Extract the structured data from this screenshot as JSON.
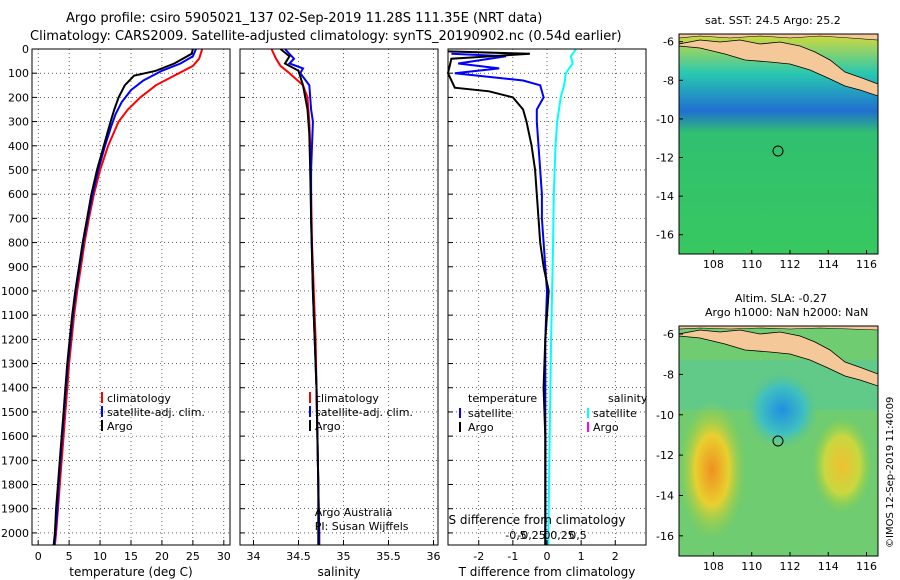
{
  "header": {
    "line1": "Argo profile: csiro 5905021_137 02-Sep-2019 11.28S 111.35E (NRT data)",
    "line2": "Climatology: CARS2009. Satellite-adjusted climatology: synTS_20190902.nc (0.54d earlier)"
  },
  "colors": {
    "climatology": "#ff0000",
    "satellite": "#0000ff",
    "argo": "#000000",
    "satellite_salinity": "#00ffff",
    "argo_salinity": "#ff00ff",
    "land": "#f5c89a"
  },
  "credit": {
    "argo": "Argo Australia",
    "pi": "PI: Susan Wijffels",
    "imos": "©IMOS 12-Sep-2019 11:40:09"
  },
  "chart_data": [
    {
      "type": "line",
      "xlabel": "temperature (deg C)",
      "xlim": [
        -1,
        31
      ],
      "ylim": [
        2050,
        0
      ],
      "y_reversed": true,
      "xticks": [
        0,
        5,
        10,
        15,
        20,
        25,
        30
      ],
      "yticks": [
        0,
        100,
        200,
        300,
        400,
        500,
        600,
        700,
        800,
        900,
        1000,
        1100,
        1200,
        1300,
        1400,
        1500,
        1600,
        1700,
        1800,
        1900,
        2000
      ],
      "legend": [
        "climatology",
        "satellite-adj. clim.",
        "Argo"
      ],
      "legend_location": "lower-right",
      "series": [
        {
          "name": "climatology",
          "color": "#ff0000",
          "points": [
            [
              26.5,
              0
            ],
            [
              26,
              40
            ],
            [
              25,
              70
            ],
            [
              22,
              110
            ],
            [
              19,
              150
            ],
            [
              16.5,
              200
            ],
            [
              14.5,
              250
            ],
            [
              13,
              300
            ],
            [
              11.3,
              400
            ],
            [
              10,
              500
            ],
            [
              9,
              600
            ],
            [
              8.2,
              700
            ],
            [
              7.5,
              800
            ],
            [
              6.9,
              900
            ],
            [
              6.3,
              1000
            ],
            [
              5.8,
              1100
            ],
            [
              5.4,
              1200
            ],
            [
              5,
              1300
            ],
            [
              4.7,
              1400
            ],
            [
              4.4,
              1500
            ],
            [
              4.1,
              1600
            ],
            [
              3.8,
              1700
            ],
            [
              3.5,
              1800
            ],
            [
              3.2,
              1900
            ],
            [
              2.9,
              2000
            ],
            [
              2.7,
              2050
            ]
          ]
        },
        {
          "name": "satellite-adj. clim.",
          "color": "#0000ff",
          "points": [
            [
              25.5,
              0
            ],
            [
              25,
              30
            ],
            [
              23,
              60
            ],
            [
              20,
              90
            ],
            [
              17,
              130
            ],
            [
              15,
              170
            ],
            [
              13.5,
              220
            ],
            [
              12.5,
              270
            ],
            [
              11.8,
              320
            ],
            [
              10.8,
              400
            ],
            [
              9.7,
              500
            ],
            [
              8.8,
              600
            ],
            [
              8,
              700
            ],
            [
              7.3,
              800
            ],
            [
              6.7,
              900
            ],
            [
              6.1,
              1000
            ],
            [
              5.6,
              1100
            ],
            [
              5.2,
              1200
            ],
            [
              4.8,
              1300
            ],
            [
              4.5,
              1400
            ],
            [
              4.2,
              1500
            ],
            [
              3.9,
              1600
            ],
            [
              3.6,
              1700
            ],
            [
              3.3,
              1800
            ],
            [
              3.1,
              1900
            ],
            [
              2.8,
              2000
            ],
            [
              2.6,
              2050
            ]
          ]
        },
        {
          "name": "Argo",
          "color": "#000000",
          "points": [
            [
              25,
              0
            ],
            [
              24.8,
              20
            ],
            [
              22,
              60
            ],
            [
              19,
              90
            ],
            [
              15.5,
              110
            ],
            [
              14,
              150
            ],
            [
              13,
              200
            ],
            [
              12.3,
              250
            ],
            [
              11.7,
              300
            ],
            [
              10.6,
              400
            ],
            [
              9.5,
              500
            ],
            [
              8.6,
              600
            ],
            [
              7.9,
              700
            ],
            [
              7.2,
              800
            ],
            [
              6.6,
              900
            ],
            [
              6,
              1000
            ],
            [
              5.5,
              1100
            ],
            [
              5.1,
              1200
            ],
            [
              4.7,
              1300
            ],
            [
              4.4,
              1400
            ],
            [
              4.1,
              1500
            ],
            [
              3.8,
              1600
            ],
            [
              3.5,
              1700
            ],
            [
              3.2,
              1800
            ],
            [
              2.9,
              1900
            ],
            [
              2.7,
              2000
            ],
            [
              2.5,
              2050
            ]
          ]
        }
      ]
    },
    {
      "type": "line",
      "xlabel": "salinity",
      "xlim": [
        33.85,
        36.05
      ],
      "ylim": [
        2050,
        0
      ],
      "y_reversed": true,
      "xticks": [
        34,
        34.5,
        35,
        35.5,
        36
      ],
      "legend": [
        "climatology",
        "satellite-adj. clim.",
        "Argo"
      ],
      "legend_location": "lower-right",
      "series": [
        {
          "name": "climatology",
          "color": "#ff0000",
          "points": [
            [
              34.2,
              0
            ],
            [
              34.25,
              40
            ],
            [
              34.3,
              70
            ],
            [
              34.4,
              100
            ],
            [
              34.55,
              150
            ],
            [
              34.6,
              200
            ],
            [
              34.62,
              300
            ],
            [
              34.63,
              400
            ],
            [
              34.64,
              600
            ],
            [
              34.65,
              800
            ],
            [
              34.67,
              1000
            ],
            [
              34.69,
              1200
            ],
            [
              34.7,
              1400
            ],
            [
              34.71,
              1600
            ],
            [
              34.72,
              1800
            ],
            [
              34.73,
              2000
            ],
            [
              34.73,
              2050
            ]
          ]
        },
        {
          "name": "satellite-adj. clim.",
          "color": "#0000ff",
          "points": [
            [
              34.35,
              0
            ],
            [
              34.45,
              40
            ],
            [
              34.4,
              60
            ],
            [
              34.55,
              80
            ],
            [
              34.52,
              100
            ],
            [
              34.62,
              150
            ],
            [
              34.64,
              250
            ],
            [
              34.66,
              300
            ],
            [
              34.65,
              400
            ],
            [
              34.64,
              500
            ],
            [
              34.64,
              700
            ],
            [
              34.66,
              1000
            ],
            [
              34.68,
              1200
            ],
            [
              34.7,
              1400
            ],
            [
              34.71,
              1600
            ],
            [
              34.72,
              1800
            ],
            [
              34.73,
              2000
            ],
            [
              34.73,
              2050
            ]
          ]
        },
        {
          "name": "Argo",
          "color": "#000000",
          "points": [
            [
              34.3,
              0
            ],
            [
              34.4,
              30
            ],
            [
              34.35,
              60
            ],
            [
              34.5,
              90
            ],
            [
              34.55,
              150
            ],
            [
              34.6,
              250
            ],
            [
              34.62,
              350
            ],
            [
              34.63,
              500
            ],
            [
              34.64,
              700
            ],
            [
              34.66,
              1000
            ],
            [
              34.68,
              1200
            ],
            [
              34.7,
              1400
            ],
            [
              34.71,
              1600
            ],
            [
              34.72,
              1800
            ],
            [
              34.72,
              2000
            ],
            [
              34.72,
              2050
            ]
          ]
        }
      ]
    },
    {
      "type": "line",
      "xlabel": "T difference from climatology",
      "xlabel_top": "S difference from climatology",
      "xlim": [
        -2.9,
        2.9
      ],
      "ylim": [
        2050,
        0
      ],
      "y_reversed": true,
      "xticks": [
        -2,
        -1,
        0,
        1,
        2
      ],
      "xticks_top": [
        -0.5,
        -0.25,
        0,
        0.25,
        0.5
      ],
      "legend_left_title": "temperature",
      "legend_right_title": "salinity",
      "legend_left": [
        "satellite",
        "Argo"
      ],
      "legend_right": [
        "satellite",
        "Argo"
      ],
      "series": [
        {
          "name": "temperature satellite",
          "color": "#0000ff",
          "points": [
            [
              -2.8,
              20
            ],
            [
              -1.2,
              30
            ],
            [
              -2.6,
              60
            ],
            [
              -1.4,
              80
            ],
            [
              -2.7,
              100
            ],
            [
              -0.7,
              130
            ],
            [
              -0.2,
              150
            ],
            [
              -0.1,
              200
            ],
            [
              -0.3,
              250
            ],
            [
              -0.3,
              300
            ],
            [
              -0.25,
              400
            ],
            [
              -0.2,
              500
            ],
            [
              -0.15,
              600
            ],
            [
              -0.15,
              700
            ],
            [
              -0.1,
              800
            ],
            [
              -0.05,
              900
            ],
            [
              0,
              1000
            ],
            [
              -0.05,
              1200
            ],
            [
              -0.05,
              1400
            ],
            [
              -0.05,
              1600
            ],
            [
              -0.05,
              1800
            ],
            [
              -0.05,
              2000
            ],
            [
              -0.05,
              2050
            ]
          ]
        },
        {
          "name": "temperature Argo",
          "color": "#000000",
          "points": [
            [
              -2.9,
              10
            ],
            [
              -0.5,
              20
            ],
            [
              -2.8,
              40
            ],
            [
              -2.9,
              100
            ],
            [
              -2.7,
              160
            ],
            [
              -1.7,
              175
            ],
            [
              -1,
              200
            ],
            [
              -0.7,
              250
            ],
            [
              -0.6,
              300
            ],
            [
              -0.45,
              400
            ],
            [
              -0.35,
              500
            ],
            [
              -0.3,
              600
            ],
            [
              -0.25,
              700
            ],
            [
              -0.2,
              800
            ],
            [
              -0.1,
              900
            ],
            [
              0.05,
              1000
            ],
            [
              -0.05,
              1200
            ],
            [
              -0.1,
              1400
            ],
            [
              -0.05,
              1600
            ],
            [
              -0.05,
              1800
            ],
            [
              -0.05,
              2000
            ],
            [
              -0.05,
              2050
            ]
          ]
        },
        {
          "name": "salinity satellite",
          "color": "#00ffff",
          "points": [
            [
              0.85,
              0
            ],
            [
              0.7,
              30
            ],
            [
              0.75,
              60
            ],
            [
              0.55,
              100
            ],
            [
              0.5,
              150
            ],
            [
              0.4,
              200
            ],
            [
              0.3,
              300
            ],
            [
              0.25,
              400
            ],
            [
              0.2,
              600
            ],
            [
              0.18,
              800
            ],
            [
              0.15,
              1000
            ],
            [
              0.12,
              1200
            ],
            [
              0.1,
              1400
            ],
            [
              0.08,
              1600
            ],
            [
              0.06,
              1800
            ],
            [
              0.04,
              2000
            ],
            [
              0.04,
              2050
            ]
          ]
        }
      ]
    },
    {
      "type": "heatmap",
      "title": "sat. SST: 24.5 Argo: 25.2",
      "xlim": [
        106.2,
        116.6
      ],
      "ylim": [
        -17,
        -5.6
      ],
      "xticks": [
        108,
        110,
        112,
        114,
        116
      ],
      "yticks": [
        -6,
        -8,
        -10,
        -12,
        -14,
        -16
      ],
      "marker": [
        111.35,
        -11.28
      ]
    },
    {
      "type": "heatmap",
      "title": "Altim. SLA: -0.27",
      "subtitle": "Argo h1000: NaN h2000: NaN",
      "xlim": [
        106.2,
        116.6
      ],
      "ylim": [
        -17,
        -5.6
      ],
      "xticks": [
        108,
        110,
        112,
        114,
        116
      ],
      "yticks": [
        -6,
        -8,
        -10,
        -12,
        -14,
        -16
      ],
      "marker": [
        111.35,
        -11.28
      ]
    }
  ]
}
